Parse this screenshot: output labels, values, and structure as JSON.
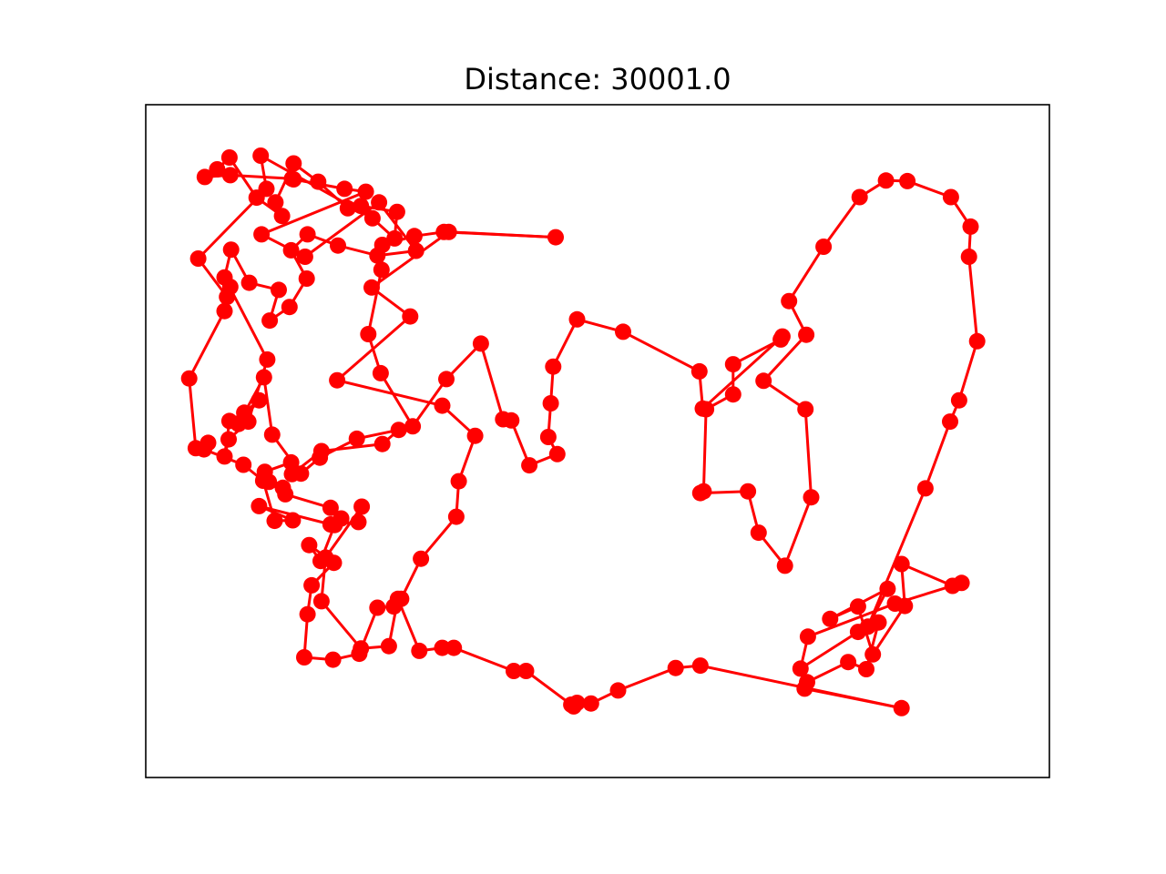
{
  "chart_data": {
    "type": "line",
    "title": "Distance: 30001.0",
    "xlabel": "",
    "ylabel": "",
    "xlim": [
      0,
      1000
    ],
    "ylim": [
      0,
      1000
    ],
    "grid": false,
    "ticks_visible": false,
    "line_color": "#ff0000",
    "marker_color": "#ff0000",
    "marker": "circle",
    "closed_tour": true,
    "points": [
      [
        870,
        952
      ],
      [
        752,
        919
      ],
      [
        755,
        908
      ],
      [
        805,
        874
      ],
      [
        827,
        886
      ],
      [
        842,
        807
      ],
      [
        817,
        823
      ],
      [
        747,
        885
      ],
      [
        756,
        831
      ],
      [
        862,
        775
      ],
      [
        943,
        740
      ],
      [
        932,
        745
      ],
      [
        870,
        708
      ],
      [
        874,
        779
      ],
      [
        835,
        861
      ],
      [
        817,
        780
      ],
      [
        783,
        801
      ],
      [
        853,
        750
      ],
      [
        829,
        814
      ],
      [
        899,
        580
      ],
      [
        929,
        467
      ],
      [
        940,
        431
      ],
      [
        962,
        331
      ],
      [
        952,
        188
      ],
      [
        954,
        137
      ],
      [
        930,
        87
      ],
      [
        877,
        60
      ],
      [
        851,
        59
      ],
      [
        819,
        87
      ],
      [
        775,
        171
      ],
      [
        733,
        263
      ],
      [
        754,
        320
      ],
      [
        702,
        398
      ],
      [
        753,
        446
      ],
      [
        760,
        595
      ],
      [
        728,
        711
      ],
      [
        696,
        655
      ],
      [
        683,
        585
      ],
      [
        625,
        588
      ],
      [
        629,
        585
      ],
      [
        632,
        446
      ],
      [
        665,
        421
      ],
      [
        665,
        370
      ],
      [
        723,
        328
      ],
      [
        725,
        323
      ],
      [
        628,
        445
      ],
      [
        624,
        382
      ],
      [
        531,
        315
      ],
      [
        475,
        294
      ],
      [
        446,
        374
      ],
      [
        443,
        436
      ],
      [
        440,
        493
      ],
      [
        451,
        522
      ],
      [
        417,
        541
      ],
      [
        395,
        465
      ],
      [
        385,
        463
      ],
      [
        358,
        335
      ],
      [
        316,
        395
      ],
      [
        275,
        475
      ],
      [
        236,
        385
      ],
      [
        221,
        319
      ],
      [
        237,
        210
      ],
      [
        238,
        168
      ],
      [
        277,
        153
      ],
      [
        313,
        146
      ],
      [
        449,
        155
      ],
      [
        319,
        146
      ],
      [
        225,
        240
      ],
      [
        272,
        289
      ],
      [
        183,
        397
      ],
      [
        311,
        440
      ],
      [
        351,
        491
      ],
      [
        331,
        568
      ],
      [
        328,
        628
      ],
      [
        285,
        699
      ],
      [
        261,
        767
      ],
      [
        252,
        780
      ],
      [
        232,
        782
      ],
      [
        210,
        860
      ],
      [
        178,
        870
      ],
      [
        143,
        866
      ],
      [
        147,
        793
      ],
      [
        152,
        744
      ],
      [
        179,
        706
      ],
      [
        149,
        676
      ],
      [
        163,
        703
      ],
      [
        180,
        642
      ],
      [
        188,
        631
      ],
      [
        175,
        613
      ],
      [
        120,
        590
      ],
      [
        117,
        579
      ],
      [
        100,
        569
      ],
      [
        95,
        552
      ],
      [
        127,
        536
      ],
      [
        128,
        556
      ],
      [
        164,
        517
      ],
      [
        238,
        505
      ],
      [
        258,
        481
      ],
      [
        207,
        496
      ],
      [
        162,
        528
      ],
      [
        139,
        555
      ],
      [
        104,
        489
      ],
      [
        94,
        392
      ],
      [
        63,
        471
      ],
      [
        88,
        431
      ],
      [
        70,
        452
      ],
      [
        52,
        466
      ],
      [
        46,
        526
      ],
      [
        51,
        497
      ],
      [
        75,
        467
      ],
      [
        98,
        362
      ],
      [
        46,
        223
      ],
      [
        54,
        176
      ],
      [
        76,
        232
      ],
      [
        112,
        244
      ],
      [
        101,
        296
      ],
      [
        125,
        273
      ],
      [
        146,
        225
      ],
      [
        127,
        177
      ],
      [
        147,
        150
      ],
      [
        184,
        169
      ],
      [
        232,
        186
      ],
      [
        279,
        178
      ],
      [
        234,
        96
      ],
      [
        144,
        188
      ],
      [
        91,
        150
      ],
      [
        218,
        78
      ],
      [
        192,
        73
      ],
      [
        130,
        57
      ],
      [
        128,
        56
      ],
      [
        53,
        50
      ],
      [
        22,
        53
      ],
      [
        37,
        40
      ],
      [
        52,
        20
      ],
      [
        85,
        88
      ],
      [
        116,
        119
      ],
      [
        108,
        96
      ],
      [
        130,
        30
      ],
      [
        160,
        61
      ],
      [
        196,
        106
      ],
      [
        212,
        102
      ],
      [
        256,
        112
      ],
      [
        253,
        157
      ],
      [
        226,
        123
      ],
      [
        90,
        17
      ],
      [
        97,
        73
      ],
      [
        14,
        191
      ],
      [
        49,
        256
      ],
      [
        53,
        239
      ],
      [
        46,
        280
      ],
      [
        3,
        394
      ],
      [
        11,
        512
      ],
      [
        26,
        503
      ],
      [
        21,
        514
      ],
      [
        69,
        540
      ],
      [
        93,
        567
      ],
      [
        107,
        635
      ],
      [
        129,
        634
      ],
      [
        88,
        610
      ],
      [
        175,
        641
      ],
      [
        209,
        637
      ],
      [
        213,
        611
      ],
      [
        169,
        697
      ],
      [
        164,
        771
      ],
      [
        212,
        851
      ],
      [
        246,
        847
      ],
      [
        257,
        767
      ],
      [
        283,
        855
      ],
      [
        311,
        850
      ],
      [
        325,
        850
      ],
      [
        398,
        889
      ],
      [
        413,
        889
      ],
      [
        468,
        946
      ],
      [
        471,
        949
      ],
      [
        475,
        943
      ],
      [
        492,
        944
      ],
      [
        525,
        922
      ],
      [
        595,
        884
      ],
      [
        625,
        880
      ]
    ]
  }
}
